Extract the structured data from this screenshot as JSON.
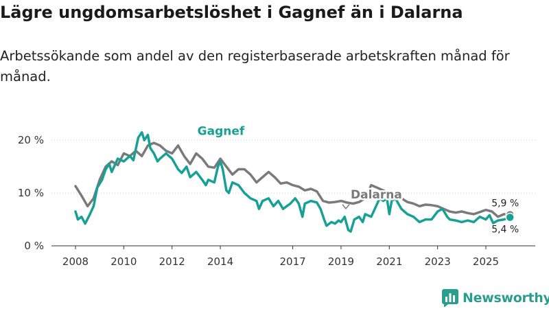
{
  "title": "Lägre ungdomsarbetslöshet i Gagnef än i Dalarna",
  "subtitle": "Arbetssökande som andel av den registerbaserade arbetskraften månad för månad.",
  "brand": {
    "name": "Newsworthy",
    "icon": "newsworthy-logo-icon",
    "color": "#2a9d8f"
  },
  "chart_data": {
    "type": "line",
    "ylim": [
      0,
      22.5
    ],
    "xlim": [
      2008,
      2026.25
    ],
    "y_ticks": [
      {
        "value": 0,
        "label": "0 %"
      },
      {
        "value": 10,
        "label": "10 %"
      },
      {
        "value": 20,
        "label": "20 %"
      }
    ],
    "x_ticks": [
      {
        "value": 2008,
        "label": "2008"
      },
      {
        "value": 2010,
        "label": "2010"
      },
      {
        "value": 2012,
        "label": "2012"
      },
      {
        "value": 2014,
        "label": "2014"
      },
      {
        "value": 2017,
        "label": "2017"
      },
      {
        "value": 2019,
        "label": "2019"
      },
      {
        "value": 2021,
        "label": "2021"
      },
      {
        "value": 2023,
        "label": "2023"
      },
      {
        "value": 2025,
        "label": "2025"
      }
    ],
    "grid": true,
    "series": [
      {
        "name": "Dalarna",
        "color": "#7a7a7a",
        "end_label": "5,9 %",
        "points": [
          [
            2008.0,
            11.3
          ],
          [
            2008.25,
            9.5
          ],
          [
            2008.5,
            7.5
          ],
          [
            2008.75,
            9.0
          ],
          [
            2009.0,
            12.5
          ],
          [
            2009.25,
            15.0
          ],
          [
            2009.5,
            16.0
          ],
          [
            2009.75,
            15.3
          ],
          [
            2010.0,
            17.5
          ],
          [
            2010.25,
            17.0
          ],
          [
            2010.5,
            18.0
          ],
          [
            2010.75,
            17.0
          ],
          [
            2011.0,
            19.0
          ],
          [
            2011.25,
            19.5
          ],
          [
            2011.5,
            19.0
          ],
          [
            2011.75,
            18.0
          ],
          [
            2012.0,
            17.5
          ],
          [
            2012.25,
            19.0
          ],
          [
            2012.5,
            17.0
          ],
          [
            2012.75,
            15.5
          ],
          [
            2013.0,
            17.5
          ],
          [
            2013.25,
            16.5
          ],
          [
            2013.5,
            15.0
          ],
          [
            2013.75,
            14.8
          ],
          [
            2014.0,
            16.5
          ],
          [
            2014.25,
            15.0
          ],
          [
            2014.5,
            13.5
          ],
          [
            2014.75,
            14.5
          ],
          [
            2015.0,
            14.5
          ],
          [
            2015.25,
            13.5
          ],
          [
            2015.5,
            12.0
          ],
          [
            2015.75,
            13.0
          ],
          [
            2016.0,
            14.0
          ],
          [
            2016.25,
            13.0
          ],
          [
            2016.5,
            11.8
          ],
          [
            2016.75,
            12.0
          ],
          [
            2017.0,
            11.5
          ],
          [
            2017.25,
            11.2
          ],
          [
            2017.5,
            10.5
          ],
          [
            2017.75,
            10.8
          ],
          [
            2018.0,
            10.3
          ],
          [
            2018.25,
            8.5
          ],
          [
            2018.5,
            8.2
          ],
          [
            2018.75,
            8.3
          ],
          [
            2019.0,
            8.5
          ],
          [
            2019.25,
            8.2
          ],
          [
            2019.5,
            8.0
          ],
          [
            2019.75,
            8.3
          ],
          [
            2020.0,
            9.0
          ],
          [
            2020.25,
            11.5
          ],
          [
            2020.5,
            11.0
          ],
          [
            2020.75,
            10.5
          ],
          [
            2021.0,
            10.0
          ],
          [
            2021.25,
            9.2
          ],
          [
            2021.5,
            9.0
          ],
          [
            2021.75,
            8.3
          ],
          [
            2022.0,
            8.0
          ],
          [
            2022.25,
            7.5
          ],
          [
            2022.5,
            7.8
          ],
          [
            2022.75,
            7.7
          ],
          [
            2023.0,
            7.5
          ],
          [
            2023.25,
            7.0
          ],
          [
            2023.5,
            6.5
          ],
          [
            2023.75,
            6.3
          ],
          [
            2024.0,
            6.5
          ],
          [
            2024.25,
            6.2
          ],
          [
            2024.5,
            6.0
          ],
          [
            2024.75,
            6.4
          ],
          [
            2025.0,
            6.8
          ],
          [
            2025.25,
            6.5
          ],
          [
            2025.5,
            5.5
          ],
          [
            2025.75,
            6.0
          ],
          [
            2026.0,
            5.9
          ]
        ]
      },
      {
        "name": "Gagnef",
        "color": "#17a096",
        "end_label": "5,4 %",
        "points": [
          [
            2008.0,
            6.5
          ],
          [
            2008.1,
            5.0
          ],
          [
            2008.25,
            5.5
          ],
          [
            2008.4,
            4.2
          ],
          [
            2008.6,
            6.0
          ],
          [
            2008.75,
            7.5
          ],
          [
            2008.9,
            11.0
          ],
          [
            2009.1,
            12.5
          ],
          [
            2009.25,
            14.5
          ],
          [
            2009.4,
            15.5
          ],
          [
            2009.5,
            14.0
          ],
          [
            2009.75,
            16.5
          ],
          [
            2010.0,
            16.0
          ],
          [
            2010.25,
            17.0
          ],
          [
            2010.4,
            16.2
          ],
          [
            2010.6,
            20.5
          ],
          [
            2010.75,
            21.5
          ],
          [
            2010.85,
            20.0
          ],
          [
            2011.0,
            21.0
          ],
          [
            2011.1,
            18.5
          ],
          [
            2011.25,
            17.5
          ],
          [
            2011.4,
            16.0
          ],
          [
            2011.5,
            16.5
          ],
          [
            2011.75,
            17.5
          ],
          [
            2012.0,
            16.5
          ],
          [
            2012.25,
            14.5
          ],
          [
            2012.4,
            13.8
          ],
          [
            2012.6,
            15.0
          ],
          [
            2012.75,
            13.0
          ],
          [
            2013.0,
            14.0
          ],
          [
            2013.25,
            12.5
          ],
          [
            2013.4,
            11.5
          ],
          [
            2013.5,
            12.5
          ],
          [
            2013.75,
            12.0
          ],
          [
            2013.9,
            15.0
          ],
          [
            2014.0,
            16.0
          ],
          [
            2014.1,
            14.5
          ],
          [
            2014.25,
            10.5
          ],
          [
            2014.35,
            10.0
          ],
          [
            2014.5,
            12.0
          ],
          [
            2014.75,
            11.5
          ],
          [
            2015.0,
            10.0
          ],
          [
            2015.25,
            9.0
          ],
          [
            2015.5,
            8.5
          ],
          [
            2015.6,
            7.0
          ],
          [
            2015.75,
            8.5
          ],
          [
            2016.0,
            9.0
          ],
          [
            2016.2,
            7.5
          ],
          [
            2016.4,
            8.5
          ],
          [
            2016.6,
            7.0
          ],
          [
            2016.75,
            7.5
          ],
          [
            2016.9,
            8.0
          ],
          [
            2017.1,
            9.0
          ],
          [
            2017.25,
            8.0
          ],
          [
            2017.4,
            5.5
          ],
          [
            2017.5,
            8.0
          ],
          [
            2017.75,
            8.5
          ],
          [
            2018.0,
            8.2
          ],
          [
            2018.15,
            7.0
          ],
          [
            2018.3,
            5.0
          ],
          [
            2018.4,
            3.8
          ],
          [
            2018.6,
            4.5
          ],
          [
            2018.75,
            4.2
          ],
          [
            2018.9,
            4.8
          ],
          [
            2019.0,
            4.5
          ],
          [
            2019.15,
            5.5
          ],
          [
            2019.3,
            3.0
          ],
          [
            2019.4,
            2.7
          ],
          [
            2019.55,
            5.0
          ],
          [
            2019.75,
            5.5
          ],
          [
            2019.9,
            4.5
          ],
          [
            2020.0,
            6.0
          ],
          [
            2020.25,
            5.5
          ],
          [
            2020.4,
            7.0
          ],
          [
            2020.6,
            9.0
          ],
          [
            2020.75,
            8.5
          ],
          [
            2020.9,
            9.0
          ],
          [
            2021.0,
            6.0
          ],
          [
            2021.1,
            8.5
          ],
          [
            2021.25,
            9.0
          ],
          [
            2021.5,
            7.0
          ],
          [
            2021.75,
            6.0
          ],
          [
            2022.0,
            5.5
          ],
          [
            2022.25,
            4.5
          ],
          [
            2022.5,
            5.0
          ],
          [
            2022.75,
            5.0
          ],
          [
            2023.0,
            6.5
          ],
          [
            2023.2,
            7.0
          ],
          [
            2023.4,
            5.5
          ],
          [
            2023.5,
            5.0
          ],
          [
            2023.75,
            4.8
          ],
          [
            2024.0,
            4.5
          ],
          [
            2024.25,
            4.8
          ],
          [
            2024.5,
            4.5
          ],
          [
            2024.75,
            5.5
          ],
          [
            2025.0,
            5.0
          ],
          [
            2025.15,
            5.8
          ],
          [
            2025.3,
            4.3
          ],
          [
            2025.5,
            4.8
          ],
          [
            2025.75,
            5.0
          ],
          [
            2026.0,
            5.4
          ]
        ]
      }
    ]
  }
}
